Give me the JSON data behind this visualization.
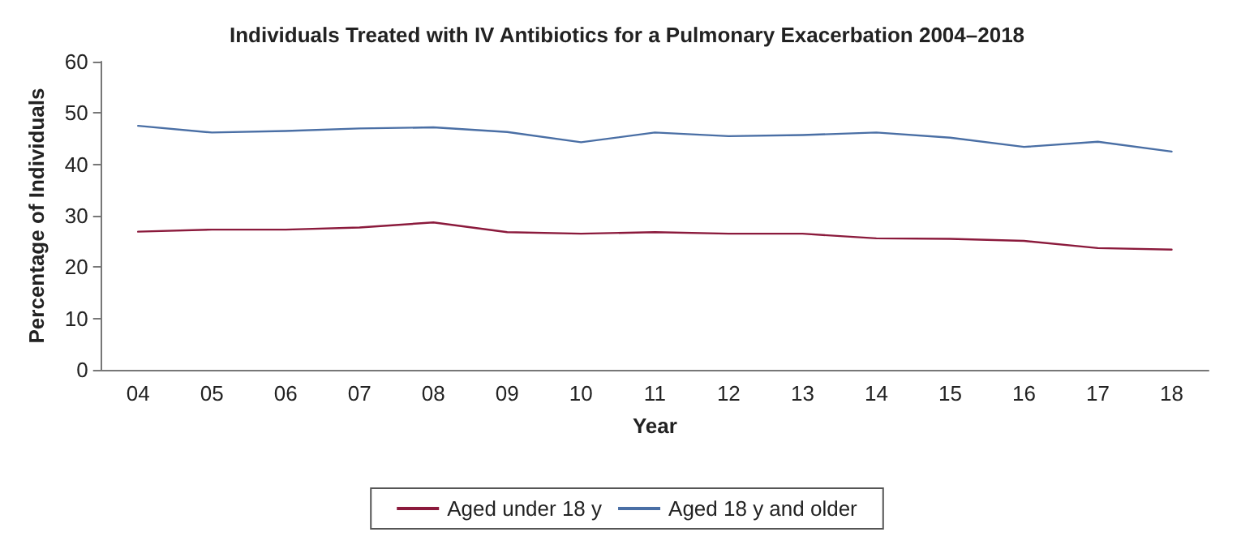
{
  "chart_data": {
    "type": "line",
    "title": "Individuals Treated with IV Antibiotics for a Pulmonary Exacerbation 2004–2018",
    "xlabel": "Year",
    "ylabel": "Percentage of Individuals",
    "categories": [
      "04",
      "05",
      "06",
      "07",
      "08",
      "09",
      "10",
      "11",
      "12",
      "13",
      "14",
      "15",
      "16",
      "17",
      "18"
    ],
    "series": [
      {
        "name": "Aged under 18 y",
        "color": "#8b1a3c",
        "values": [
          26.9,
          27.3,
          27.3,
          27.7,
          28.7,
          26.8,
          26.5,
          26.8,
          26.5,
          26.5,
          25.6,
          25.5,
          25.1,
          23.7,
          23.4
        ]
      },
      {
        "name": "Aged 18 y and older",
        "color": "#4a6fa5",
        "values": [
          47.5,
          46.2,
          46.5,
          47,
          47.2,
          46.3,
          44.3,
          46.2,
          45.5,
          45.7,
          46.2,
          45.2,
          43.4,
          44.4,
          42.5
        ]
      }
    ],
    "ylim": [
      0,
      60
    ],
    "yticks": [
      0,
      10,
      20,
      30,
      40,
      50,
      60
    ],
    "grid": false,
    "legend": "bottom",
    "marker": "none",
    "line_style": "solid"
  }
}
